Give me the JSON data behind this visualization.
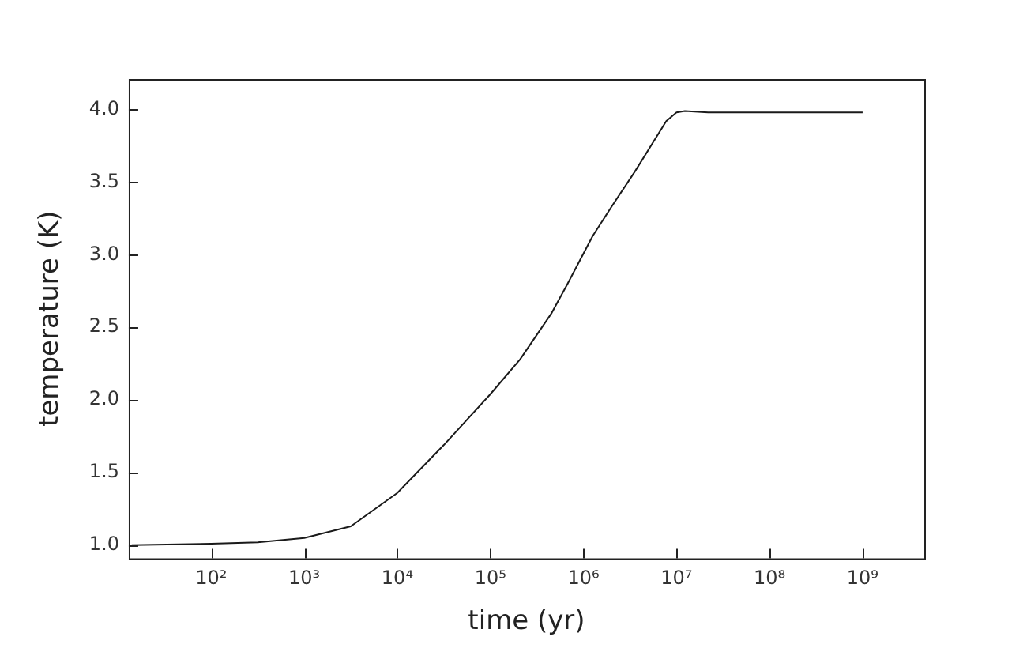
{
  "chart_data": {
    "type": "line",
    "xlabel": "time (yr)",
    "ylabel": "temperature (K)",
    "log": "x",
    "grid": false,
    "legend": false,
    "marker": "none",
    "line_style": "solid",
    "xlim": [
      13,
      4600000000
    ],
    "ylim": [
      0.91,
      4.21
    ],
    "xticks": [
      {
        "value": 100,
        "label": "10²"
      },
      {
        "value": 1000,
        "label": "10³"
      },
      {
        "value": 10000,
        "label": "10⁴"
      },
      {
        "value": 100000,
        "label": "10⁵"
      },
      {
        "value": 1000000,
        "label": "10⁶"
      },
      {
        "value": 10000000,
        "label": "10⁷"
      },
      {
        "value": 100000000,
        "label": "10⁸"
      },
      {
        "value": 1000000000,
        "label": "10⁹"
      }
    ],
    "yticks": [
      {
        "value": 1,
        "label": "1.0"
      },
      1.5,
      {
        "value": 2,
        "label": "2.0"
      },
      2.5,
      {
        "value": 3,
        "label": "3.0"
      },
      3.5,
      {
        "value": 4,
        "label": "4.0"
      }
    ],
    "x": [
      14,
      100,
      316,
      1000,
      3162,
      10000,
      31623,
      100000,
      208930,
      457000,
      676000,
      1259000,
      2000000,
      3548000,
      7762000,
      10000000,
      12300000,
      21900000,
      1000000000
    ],
    "series": [
      {
        "color": "#1a1a1a",
        "values": [
          1.0,
          1.01,
          1.02,
          1.05,
          1.13,
          1.36,
          1.69,
          2.04,
          2.28,
          2.6,
          2.8,
          3.13,
          3.33,
          3.57,
          3.92,
          3.98,
          3.99,
          3.98,
          3.98
        ]
      }
    ]
  }
}
